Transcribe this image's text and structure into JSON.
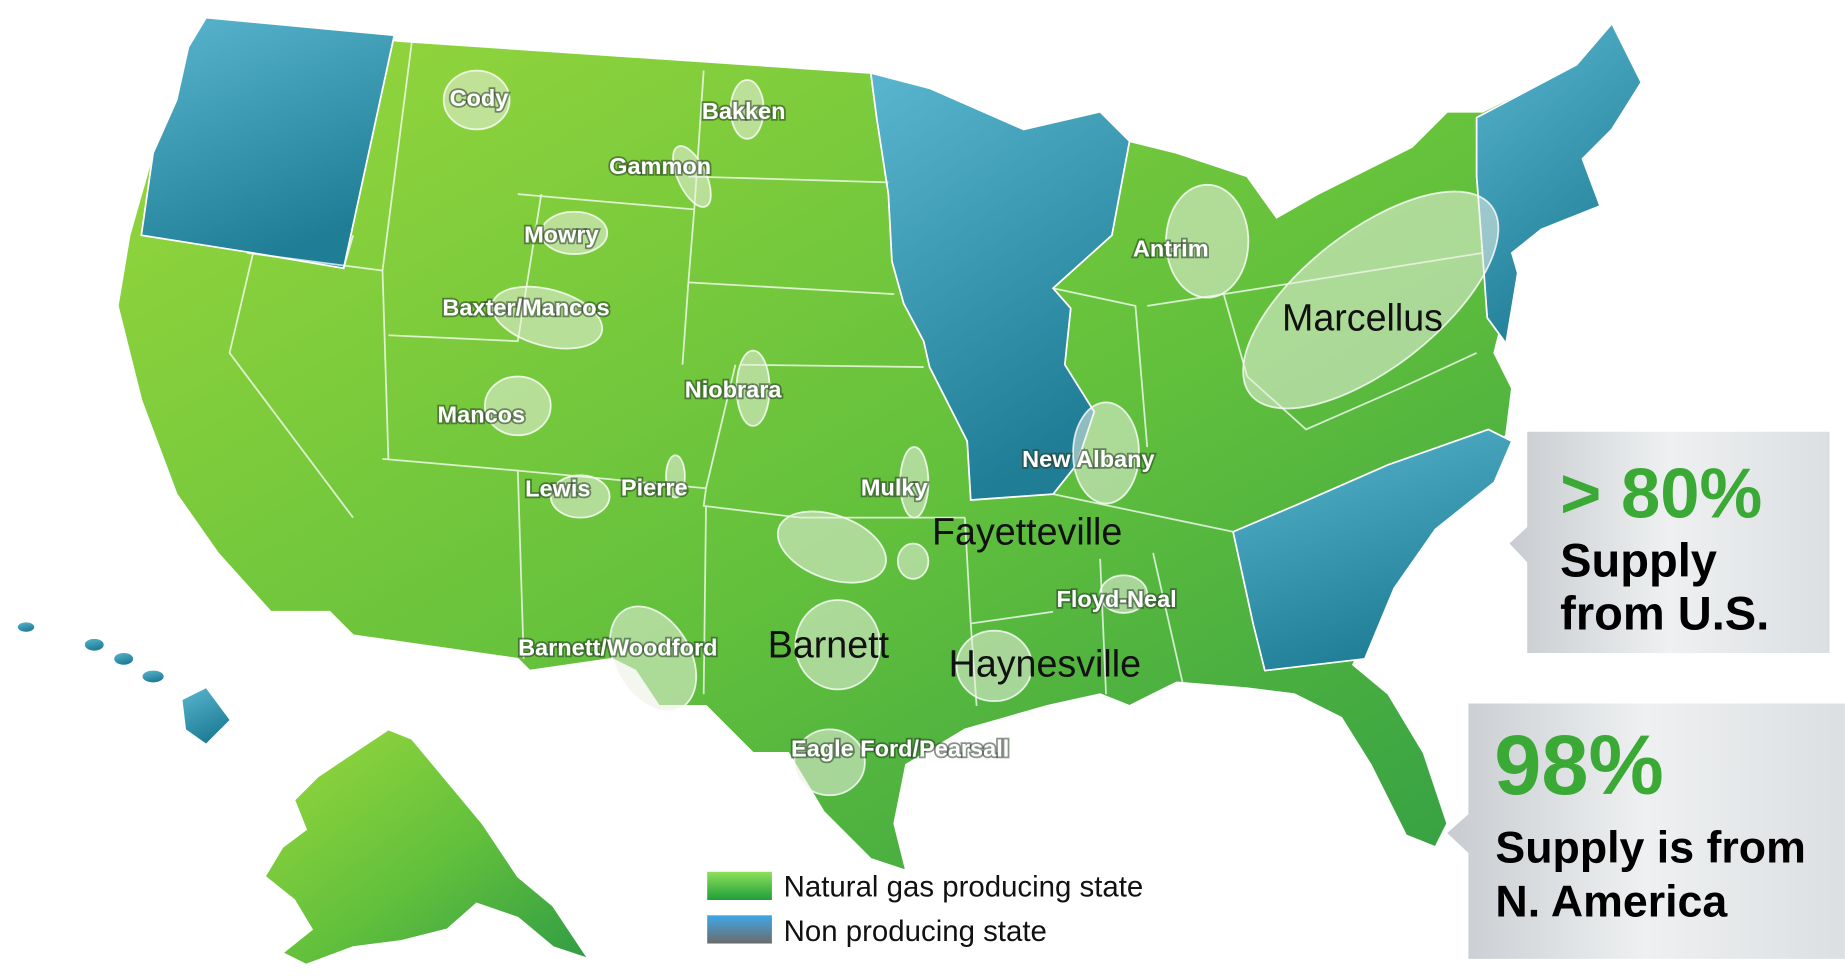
{
  "plays": [
    "Cody",
    "Bakken",
    "Gammon",
    "Mowry",
    "Baxter/Mancos",
    "Mancos",
    "Niobrara",
    "Lewis",
    "Pierre",
    "Mulky",
    "New Albany",
    "Antrim",
    "Floyd-Neal",
    "Barnett/Woodford",
    "Eagle Ford/Pearsall"
  ],
  "major_plays": [
    "Marcellus",
    "Fayetteville",
    "Barnett",
    "Haynesville"
  ],
  "legend": [
    "Natural gas producing state",
    "Non producing state"
  ],
  "callouts": [
    {
      "headline": "> 80%",
      "lines": [
        "Supply",
        "from U.S."
      ]
    },
    {
      "headline": "98%",
      "lines": [
        "Supply is from",
        "N. America"
      ]
    }
  ]
}
